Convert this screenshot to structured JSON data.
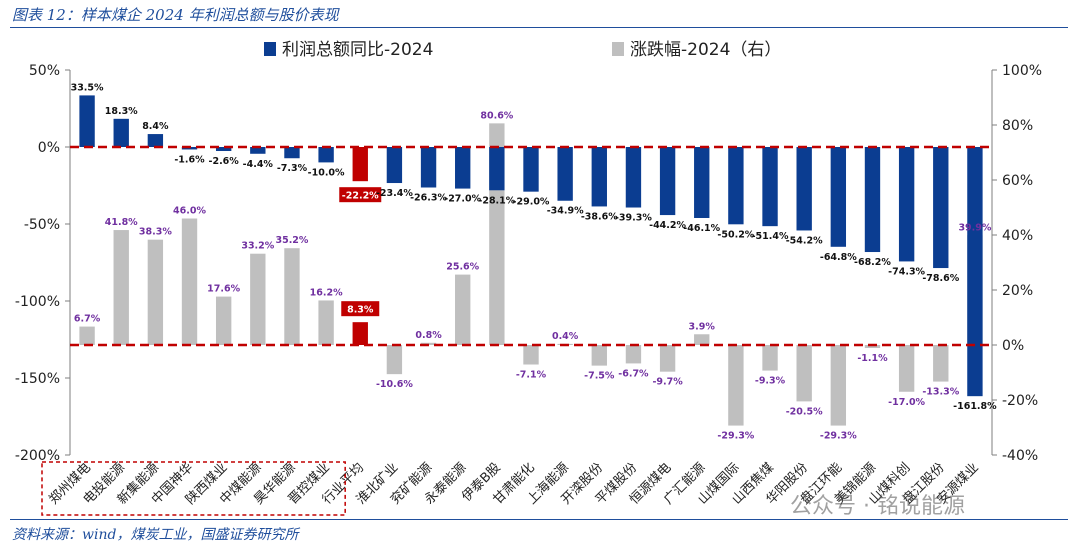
{
  "header": {
    "title": "图表 12：样本煤企 2024 年利润总额与股价表现"
  },
  "footer": {
    "source": "资料来源：wind，煤炭工业，国盛证券研究所"
  },
  "watermark": {
    "text": "公众号 · 铭说能源"
  },
  "colors": {
    "profit": "#0b3d91",
    "price": "#bfbfbf",
    "highlight": "#c00000",
    "axis_line": "#c00000"
  },
  "chart_data": {
    "type": "bar",
    "categories": [
      "郑州煤电",
      "电投能源",
      "新集能源",
      "中国神华",
      "陕西煤业",
      "中煤能源",
      "昊华能源",
      "晋控煤业",
      "行业平均",
      "淮北矿业",
      "兖矿能源",
      "永泰能源",
      "伊泰B股",
      "甘肃能化",
      "上海能源",
      "开滦股份",
      "平煤股份",
      "恒源煤电",
      "广汇能源",
      "山煤国际",
      "山西焦煤",
      "华阳股份",
      "盘江环能",
      "美锦能源",
      "山煤科创",
      "盘江股份",
      "安源煤业"
    ],
    "series": [
      {
        "name": "利润总额同比-2024",
        "axis": "left",
        "values": [
          33.5,
          18.3,
          8.4,
          -1.6,
          -2.6,
          -4.4,
          -7.3,
          -10.0,
          -22.2,
          -23.4,
          -26.3,
          -27.0,
          -28.1,
          -29.0,
          -34.9,
          -38.6,
          -39.3,
          -44.2,
          -46.1,
          -50.2,
          -51.4,
          -54.2,
          -64.8,
          -68.2,
          -74.3,
          -78.6,
          -161.8
        ],
        "labels": [
          "33.5%",
          "18.3%",
          "8.4%",
          "-1.6%",
          "-2.6%",
          "-4.4%",
          "-7.3%",
          "-10.0%",
          "-22.2%",
          "-23.4%",
          "-26.3%",
          "-27.0%",
          "-28.1%",
          "-29.0%",
          "-34.9%",
          "-38.6%",
          "-39.3%",
          "-44.2%",
          "-46.1%",
          "-50.2%",
          "-51.4%",
          "-54.2%",
          "-64.8%",
          "-68.2%",
          "-74.3%",
          "-78.6%",
          "-161.8%"
        ]
      },
      {
        "name": "涨跌幅-2024（右）",
        "axis": "right",
        "values": [
          6.7,
          41.8,
          38.3,
          46.0,
          17.6,
          33.2,
          35.2,
          16.2,
          8.3,
          -10.6,
          0.8,
          25.6,
          80.6,
          -7.1,
          0.4,
          -7.5,
          -6.7,
          -9.7,
          3.9,
          -29.3,
          -9.3,
          -20.5,
          -29.3,
          -1.1,
          -17.0,
          -13.3,
          39.9
        ],
        "labels": [
          "6.7%",
          "41.8%",
          "38.3%",
          "46.0%",
          "17.6%",
          "33.2%",
          "35.2%",
          "16.2%",
          "8.3%",
          "-10.6%",
          "0.8%",
          "25.6%",
          "80.6%",
          "-7.1%",
          "0.4%",
          "-7.5%",
          "-6.7%",
          "-9.7%",
          "3.9%",
          "-29.3%",
          "-9.3%",
          "-20.5%",
          "-29.3%",
          "-1.1%",
          "-17.0%",
          "-13.3%",
          "39.9%"
        ]
      }
    ],
    "highlight_index": 8,
    "y_left": {
      "min": -200,
      "max": 50,
      "ticks": [
        50,
        0,
        -50,
        -100,
        -150,
        -200
      ],
      "tick_labels": [
        "50%",
        "0%",
        "-50%",
        "-100%",
        "-150%",
        "-200%"
      ]
    },
    "y_right": {
      "min": -40,
      "max": 100,
      "ticks": [
        100,
        80,
        60,
        40,
        20,
        0,
        -20,
        -40
      ],
      "tick_labels": [
        "100%",
        "80%",
        "60%",
        "40%",
        "20%",
        "0%",
        "-20%",
        "-40%"
      ]
    },
    "legend": {
      "position": "top",
      "entries": [
        "利润总额同比-2024",
        "涨跌幅-2024（右）"
      ]
    },
    "grid": false,
    "boxed_categories": [
      0,
      7
    ]
  }
}
